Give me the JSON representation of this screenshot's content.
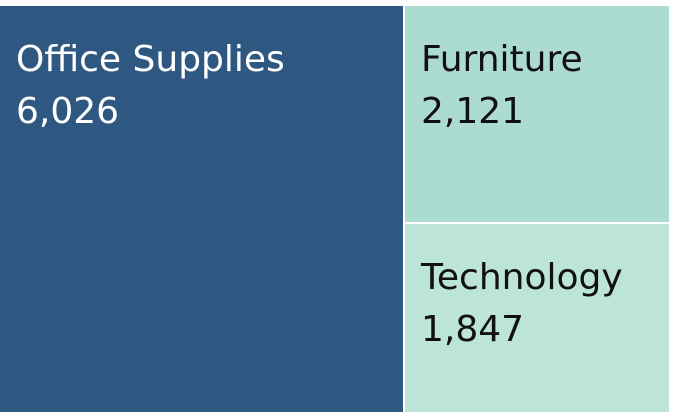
{
  "chart_data": {
    "type": "treemap",
    "categories": [
      "Office Supplies",
      "Furniture",
      "Technology"
    ],
    "values": [
      6026,
      2121,
      1847
    ],
    "value_labels": [
      "6,026",
      "2,121",
      "1,847"
    ],
    "colors": [
      "#2e5782",
      "#acdbd2",
      "#bce4d9"
    ],
    "text_colors": [
      "#ffffff",
      "#111111",
      "#111111"
    ]
  }
}
